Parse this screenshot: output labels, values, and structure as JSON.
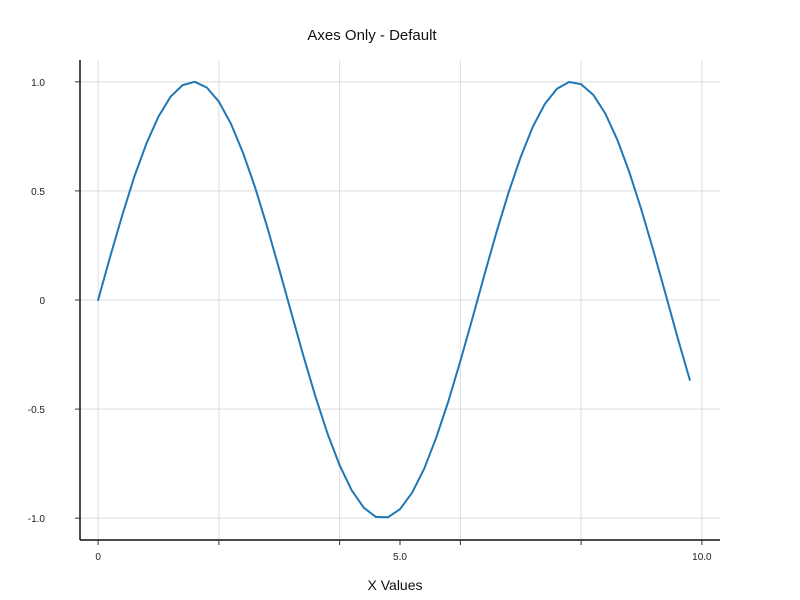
{
  "chart_data": {
    "type": "line",
    "title": "Axes Only - Default",
    "xlabel": "X Values",
    "ylabel": "",
    "xlim": [
      -0.3,
      10.3
    ],
    "ylim": [
      -1.1,
      1.1
    ],
    "x_ticks": [
      {
        "value": 0,
        "label": "0"
      },
      {
        "value": 2,
        "label": ""
      },
      {
        "value": 4,
        "label": ""
      },
      {
        "value": 5,
        "label": "5.0"
      },
      {
        "value": 6,
        "label": ""
      },
      {
        "value": 8,
        "label": ""
      },
      {
        "value": 10,
        "label": "10.0"
      }
    ],
    "x_grid": [
      0,
      2,
      4,
      6,
      8,
      10
    ],
    "y_ticks": [
      {
        "value": 1,
        "label": "1.0"
      },
      {
        "value": 0.5,
        "label": "0.5"
      },
      {
        "value": 0,
        "label": "0"
      },
      {
        "value": -0.5,
        "label": "-0.5"
      },
      {
        "value": -1,
        "label": "-1.0"
      }
    ],
    "grid": true,
    "series": [
      {
        "color": "#1f77b4",
        "x": [
          0,
          0.2,
          0.4,
          0.6,
          0.8,
          1.0,
          1.2,
          1.4,
          1.6,
          1.8,
          2.0,
          2.2,
          2.4,
          2.6,
          2.8,
          3.0,
          3.2,
          3.4,
          3.6,
          3.8,
          4.0,
          4.2,
          4.4,
          4.6,
          4.8,
          5.0,
          5.2,
          5.4,
          5.6,
          5.8,
          6.0,
          6.2,
          6.4,
          6.6,
          6.8,
          7.0,
          7.2,
          7.4,
          7.6,
          7.8,
          8.0,
          8.2,
          8.4,
          8.6,
          8.8,
          9.0,
          9.2,
          9.4,
          9.6,
          9.8
        ],
        "y": [
          0,
          0.199,
          0.389,
          0.565,
          0.717,
          0.841,
          0.932,
          0.985,
          1.0,
          0.974,
          0.909,
          0.808,
          0.675,
          0.516,
          0.335,
          0.141,
          -0.058,
          -0.256,
          -0.443,
          -0.612,
          -0.757,
          -0.872,
          -0.952,
          -0.994,
          -0.996,
          -0.959,
          -0.883,
          -0.773,
          -0.631,
          -0.465,
          -0.279,
          -0.083,
          0.117,
          0.312,
          0.494,
          0.657,
          0.794,
          0.899,
          0.968,
          0.999,
          0.989,
          0.941,
          0.855,
          0.734,
          0.585,
          0.412,
          0.223,
          0.025,
          -0.174,
          -0.366
        ]
      }
    ]
  }
}
